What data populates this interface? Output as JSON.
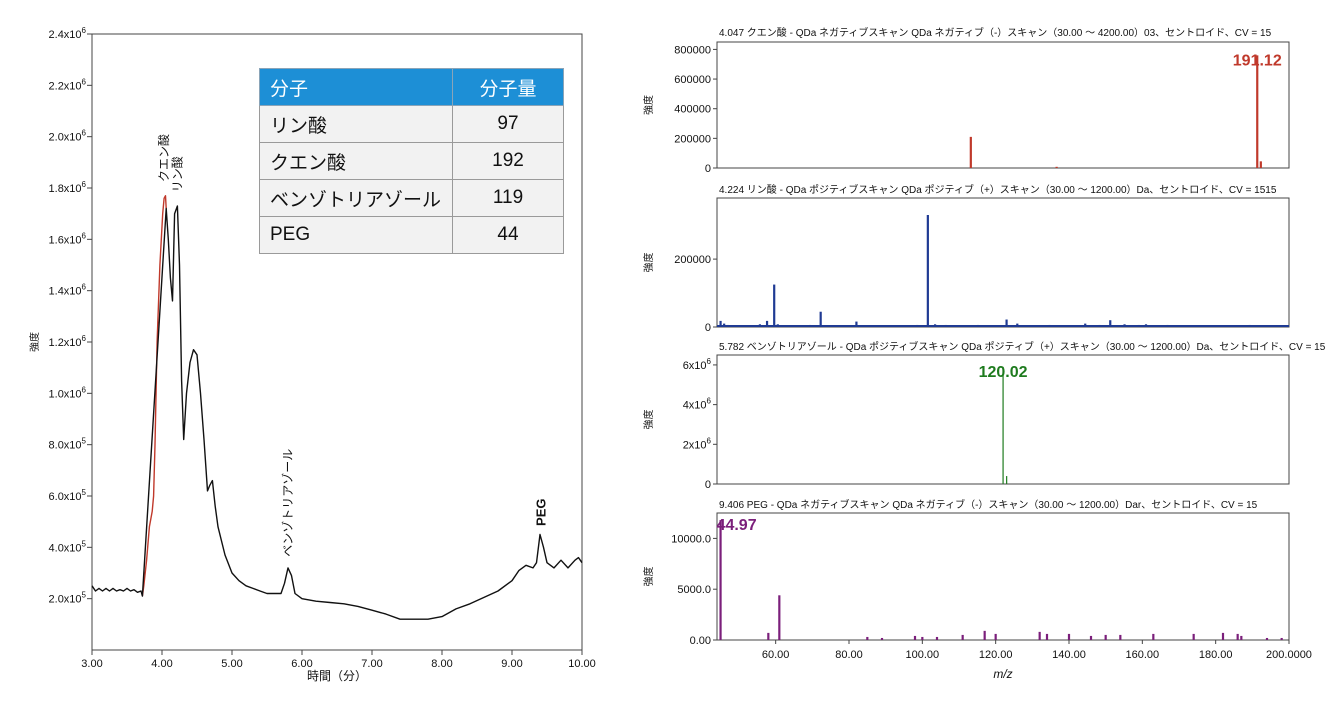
{
  "chart_data": [
    {
      "type": "line",
      "id": "chromatogram",
      "title": "",
      "xlabel": "時間（分）",
      "ylabel": "強度",
      "xlim": [
        3.0,
        10.0
      ],
      "ylim": [
        0,
        2400000
      ],
      "x_ticks": [
        3,
        4,
        5,
        6,
        7,
        8,
        9,
        10
      ],
      "x_tick_labels": [
        "3.00",
        "4.00",
        "5.00",
        "6.00",
        "7.00",
        "8.00",
        "9.00",
        "10.00"
      ],
      "y_ticks": [
        {
          "value": 200000,
          "mant": "2.0x10",
          "exp": "5"
        },
        {
          "value": 400000,
          "mant": "4.0x10",
          "exp": "5"
        },
        {
          "value": 600000,
          "mant": "6.0x10",
          "exp": "5"
        },
        {
          "value": 800000,
          "mant": "8.0x10",
          "exp": "5"
        },
        {
          "value": 1000000,
          "mant": "1.0x10",
          "exp": "6"
        },
        {
          "value": 1200000,
          "mant": "1.2x10",
          "exp": "6"
        },
        {
          "value": 1400000,
          "mant": "1.4x10",
          "exp": "6"
        },
        {
          "value": 1600000,
          "mant": "1.6x10",
          "exp": "6"
        },
        {
          "value": 1800000,
          "mant": "1.8x10",
          "exp": "6"
        },
        {
          "value": 2000000,
          "mant": "2.0x10",
          "exp": "6"
        },
        {
          "value": 2200000,
          "mant": "2.2x10",
          "exp": "6"
        },
        {
          "value": 2400000,
          "mant": "2.4x10",
          "exp": "6"
        }
      ],
      "series": [
        {
          "name": "highlight",
          "color": "#c0392b",
          "points": [
            [
              3.72,
              210000
            ],
            [
              3.74,
              250000
            ],
            [
              3.78,
              350000
            ],
            [
              3.82,
              480000
            ],
            [
              3.86,
              540000
            ],
            [
              3.88,
              600000
            ],
            [
              3.9,
              800000
            ],
            [
              3.93,
              1200000
            ],
            [
              3.97,
              1500000
            ],
            [
              4.01,
              1700000
            ],
            [
              4.03,
              1760000
            ],
            [
              4.05,
              1770000
            ],
            [
              4.06,
              1720000
            ]
          ]
        },
        {
          "name": "trace",
          "color": "#111111",
          "points": [
            [
              3.0,
              250000
            ],
            [
              3.05,
              230000
            ],
            [
              3.1,
              240000
            ],
            [
              3.15,
              230000
            ],
            [
              3.2,
              240000
            ],
            [
              3.25,
              230000
            ],
            [
              3.3,
              240000
            ],
            [
              3.35,
              230000
            ],
            [
              3.4,
              235000
            ],
            [
              3.45,
              230000
            ],
            [
              3.5,
              240000
            ],
            [
              3.55,
              230000
            ],
            [
              3.6,
              235000
            ],
            [
              3.65,
              225000
            ],
            [
              3.7,
              230000
            ],
            [
              3.72,
              210000
            ],
            [
              4.06,
              1720000
            ],
            [
              4.09,
              1600000
            ],
            [
              4.12,
              1450000
            ],
            [
              4.15,
              1360000
            ],
            [
              4.18,
              1700000
            ],
            [
              4.22,
              1730000
            ],
            [
              4.25,
              1500000
            ],
            [
              4.28,
              1050000
            ],
            [
              4.31,
              820000
            ],
            [
              4.35,
              1000000
            ],
            [
              4.4,
              1120000
            ],
            [
              4.45,
              1170000
            ],
            [
              4.5,
              1150000
            ],
            [
              4.55,
              1000000
            ],
            [
              4.6,
              820000
            ],
            [
              4.65,
              620000
            ],
            [
              4.68,
              640000
            ],
            [
              4.72,
              660000
            ],
            [
              4.76,
              560000
            ],
            [
              4.8,
              480000
            ],
            [
              4.9,
              370000
            ],
            [
              5.0,
              300000
            ],
            [
              5.1,
              270000
            ],
            [
              5.2,
              250000
            ],
            [
              5.3,
              240000
            ],
            [
              5.4,
              230000
            ],
            [
              5.5,
              220000
            ],
            [
              5.6,
              220000
            ],
            [
              5.7,
              220000
            ],
            [
              5.75,
              260000
            ],
            [
              5.8,
              320000
            ],
            [
              5.85,
              290000
            ],
            [
              5.9,
              220000
            ],
            [
              6.0,
              200000
            ],
            [
              6.2,
              190000
            ],
            [
              6.4,
              185000
            ],
            [
              6.6,
              180000
            ],
            [
              6.8,
              170000
            ],
            [
              7.0,
              155000
            ],
            [
              7.2,
              140000
            ],
            [
              7.4,
              120000
            ],
            [
              7.6,
              120000
            ],
            [
              7.8,
              120000
            ],
            [
              8.0,
              130000
            ],
            [
              8.2,
              160000
            ],
            [
              8.4,
              180000
            ],
            [
              8.6,
              205000
            ],
            [
              8.8,
              230000
            ],
            [
              9.0,
              270000
            ],
            [
              9.1,
              310000
            ],
            [
              9.2,
              330000
            ],
            [
              9.3,
              320000
            ],
            [
              9.35,
              340000
            ],
            [
              9.4,
              450000
            ],
            [
              9.45,
              400000
            ],
            [
              9.5,
              340000
            ],
            [
              9.6,
              320000
            ],
            [
              9.7,
              350000
            ],
            [
              9.8,
              320000
            ],
            [
              9.9,
              350000
            ],
            [
              9.95,
              360000
            ],
            [
              10.0,
              340000
            ]
          ]
        }
      ],
      "annotations": [
        {
          "text": "クエン酸",
          "x": 4.03,
          "y": 1800000
        },
        {
          "text": "リン酸",
          "x": 4.22,
          "y": 1760000
        },
        {
          "text": "ベンゾトリアゾール",
          "x": 5.8,
          "y": 340000
        },
        {
          "text": "PEG",
          "x": 9.42,
          "y": 460000
        }
      ]
    },
    {
      "type": "bar",
      "id": "ms-panels",
      "xlabel": "m/z",
      "panels": [
        {
          "title": "4.047 クエン酸 - QDa ネガティブスキャン QDa ネガティブ（-）スキャン（30.00 ～ 4200.00）03、セントロイド、CV = 15",
          "ylabel": "強度",
          "color": "#c0392b",
          "xlim": [
            40,
            200
          ],
          "ylim": [
            0,
            850000
          ],
          "y_ticks": [
            {
              "value": 0,
              "label": "0"
            },
            {
              "value": 200000,
              "label": "200000"
            },
            {
              "value": 400000,
              "label": "400000"
            },
            {
              "value": 600000,
              "label": "600000"
            },
            {
              "value": 800000,
              "label": "800000"
            }
          ],
          "peaks": [
            [
              111.0,
              210000
            ],
            [
              135.0,
              8000
            ],
            [
              191.12,
              760000
            ],
            [
              192.12,
              45000
            ]
          ],
          "peak_label": {
            "text": "191.12",
            "x": 191.12,
            "y": 760000
          }
        },
        {
          "title": "4.224 リン酸 - QDa ポジティブスキャン QDa ポジティブ（+）スキャン（30.00 ～ 1200.00）Da、セントロイド、CV = 1515",
          "ylabel": "強度",
          "color": "#1f3a93",
          "xlim": [
            40,
            200
          ],
          "ylim": [
            0,
            380000
          ],
          "y_ticks": [
            {
              "value": 0,
              "label": "0"
            },
            {
              "value": 200000,
              "label": "200000"
            }
          ],
          "peaks": [
            [
              41,
              18000
            ],
            [
              42,
              10000
            ],
            [
              43,
              6000
            ],
            [
              45,
              4000
            ],
            [
              48,
              5000
            ],
            [
              50,
              5000
            ],
            [
              52,
              8000
            ],
            [
              54,
              18000
            ],
            [
              56,
              125000
            ],
            [
              57,
              8000
            ],
            [
              60,
              4000
            ],
            [
              63,
              5000
            ],
            [
              66,
              6000
            ],
            [
              69,
              45000
            ],
            [
              72,
              5000
            ],
            [
              75,
              5000
            ],
            [
              79,
              16000
            ],
            [
              83,
              5000
            ],
            [
              88,
              5000
            ],
            [
              93,
              5000
            ],
            [
              96,
              6000
            ],
            [
              98.98,
              330000
            ],
            [
              101,
              8000
            ],
            [
              104,
              6000
            ],
            [
              108,
              5000
            ],
            [
              113,
              6000
            ],
            [
              117,
              4000
            ],
            [
              121,
              22000
            ],
            [
              124,
              10000
            ],
            [
              129,
              5000
            ],
            [
              133,
              6000
            ],
            [
              138,
              5000
            ],
            [
              143,
              10000
            ],
            [
              147,
              6000
            ],
            [
              150,
              20000
            ],
            [
              154,
              8000
            ],
            [
              158,
              6000
            ],
            [
              160,
              8000
            ],
            [
              163,
              5000
            ],
            [
              166,
              6000
            ],
            [
              170,
              4000
            ],
            [
              174,
              5000
            ],
            [
              177,
              5000
            ],
            [
              182,
              4000
            ],
            [
              187,
              5000
            ],
            [
              189,
              6000
            ],
            [
              193,
              5000
            ],
            [
              197,
              4000
            ]
          ]
        },
        {
          "title": "5.782 ベンゾトリアゾール - QDa ポジティブスキャン QDa ポジティブ（+）スキャン（30.00 ～ 1200.00）Da、セントロイド、CV = 15",
          "ylabel": "強度",
          "color": "#1e7b1e",
          "xlim": [
            40,
            200
          ],
          "ylim": [
            0,
            6500000
          ],
          "y_ticks": [
            {
              "value": 0,
              "label": "0"
            },
            {
              "value": 2000000,
              "mant": "2x10",
              "exp": "6"
            },
            {
              "value": 4000000,
              "mant": "4x10",
              "exp": "6"
            },
            {
              "value": 6000000,
              "mant": "6x10",
              "exp": "6"
            }
          ],
          "peaks": [
            [
              120.02,
              5900000
            ],
            [
              121.02,
              400000
            ]
          ],
          "peak_label": {
            "text": "120.02",
            "x": 120.02,
            "y": 5900000
          }
        },
        {
          "title": "9.406 PEG - QDa ネガティブスキャン QDa ネガティブ（-）スキャン（30.00 ～ 1200.00）Dar、セントロイド、CV = 15",
          "ylabel": "強度",
          "color": "#7b1f7b",
          "xlim": [
            44,
            200
          ],
          "ylim": [
            0,
            12500
          ],
          "y_ticks": [
            {
              "value": 0,
              "label": "0.00"
            },
            {
              "value": 5000,
              "label": "5000.0"
            },
            {
              "value": 10000,
              "label": "10000.0"
            }
          ],
          "x_ticks": [
            {
              "value": 60,
              "label": "60.00"
            },
            {
              "value": 80,
              "label": "80.00"
            },
            {
              "value": 100,
              "label": "100.00"
            },
            {
              "value": 120,
              "label": "120.00"
            },
            {
              "value": 140,
              "label": "140.00"
            },
            {
              "value": 160,
              "label": "160.00"
            },
            {
              "value": 180,
              "label": "180.00"
            },
            {
              "value": 200,
              "label": "200.0000"
            }
          ],
          "peaks": [
            [
              44.97,
              11800
            ],
            [
              58,
              700
            ],
            [
              61,
              4400
            ],
            [
              85,
              300
            ],
            [
              89,
              200
            ],
            [
              98,
              400
            ],
            [
              100,
              300
            ],
            [
              104,
              300
            ],
            [
              111,
              500
            ],
            [
              117,
              900
            ],
            [
              120,
              600
            ],
            [
              132,
              800
            ],
            [
              134,
              600
            ],
            [
              140,
              600
            ],
            [
              146,
              400
            ],
            [
              150,
              500
            ],
            [
              154,
              500
            ],
            [
              163,
              600
            ],
            [
              174,
              600
            ],
            [
              182,
              700
            ],
            [
              186,
              600
            ],
            [
              187,
              400
            ],
            [
              194,
              200
            ],
            [
              198,
              200
            ]
          ],
          "peak_label": {
            "text": "44.97",
            "x": 44.97,
            "y": 11800
          }
        }
      ]
    }
  ],
  "molecule_table": {
    "headers": {
      "name": "分子",
      "mass": "分子量"
    },
    "rows": [
      {
        "name": "リン酸",
        "mass": "97"
      },
      {
        "name": "クエン酸",
        "mass": "192"
      },
      {
        "name": "ベンゾトリアゾール",
        "mass": "119"
      },
      {
        "name": "PEG",
        "mass": "44"
      }
    ]
  }
}
